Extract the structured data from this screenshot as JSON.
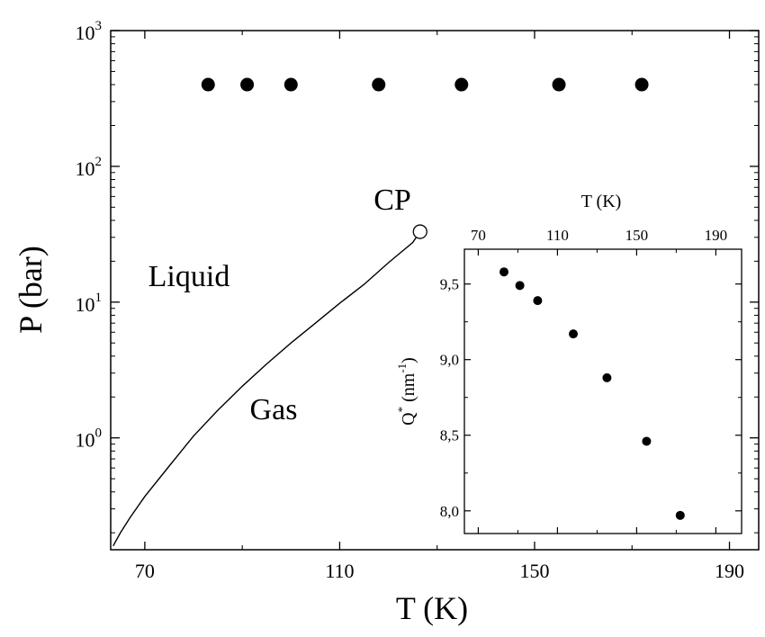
{
  "chart_data": [
    {
      "type": "scatter+line",
      "name": "phase-diagram",
      "xlabel": "T (K)",
      "ylabel": "P (bar)",
      "xlim": [
        63,
        196
      ],
      "yscale": "log",
      "ylim": [
        0.15,
        1000
      ],
      "x_ticks": [
        "70",
        "110",
        "150",
        "190"
      ],
      "y_ticks": [
        {
          "base": "10",
          "exp": "0"
        },
        {
          "base": "10",
          "exp": "1"
        },
        {
          "base": "10",
          "exp": "2"
        },
        {
          "base": "10",
          "exp": "3"
        }
      ],
      "series": [
        {
          "name": "measurement points",
          "kind": "scatter",
          "marker": "filled-circle",
          "x": [
            83,
            91,
            100,
            118,
            135,
            155,
            172
          ],
          "y": [
            400,
            400,
            400,
            400,
            400,
            400,
            400
          ]
        },
        {
          "name": "liquid-gas coexistence curve",
          "kind": "line",
          "x": [
            63.5,
            65,
            67,
            70,
            75,
            80,
            85,
            90,
            95,
            100,
            105,
            110,
            115,
            120,
            125,
            126.5
          ],
          "y": [
            0.16,
            0.2,
            0.26,
            0.37,
            0.62,
            1.03,
            1.6,
            2.4,
            3.5,
            5.0,
            7.0,
            9.8,
            13.5,
            19.5,
            27.5,
            33
          ]
        }
      ],
      "critical_point": {
        "label": "CP",
        "x": 126.5,
        "y": 33,
        "marker": "open-circle"
      },
      "regions": [
        {
          "label": "Liquid",
          "x": 88,
          "y": 10
        },
        {
          "label": "Gas",
          "x": 94,
          "y": 1.5
        }
      ]
    },
    {
      "type": "scatter",
      "name": "inset",
      "xlabel": "T (K)",
      "ylabel_base": "Q",
      "ylabel_sup": "*",
      "ylabel_unit": " (nm",
      "ylabel_unit_sup": "-1",
      "ylabel_close": ")",
      "xlim": [
        63,
        203
      ],
      "ylim": [
        7.85,
        9.73
      ],
      "x_ticks": [
        "70",
        "110",
        "150",
        "190"
      ],
      "y_ticks": [
        "8,0",
        "8,5",
        "9,0",
        "9,5"
      ],
      "series": [
        {
          "name": "Q*",
          "marker": "filled-circle",
          "x": [
            83,
            91,
            100,
            118,
            135,
            155,
            172
          ],
          "y": [
            9.58,
            9.49,
            9.39,
            9.17,
            8.88,
            8.46,
            7.97
          ]
        }
      ]
    }
  ]
}
